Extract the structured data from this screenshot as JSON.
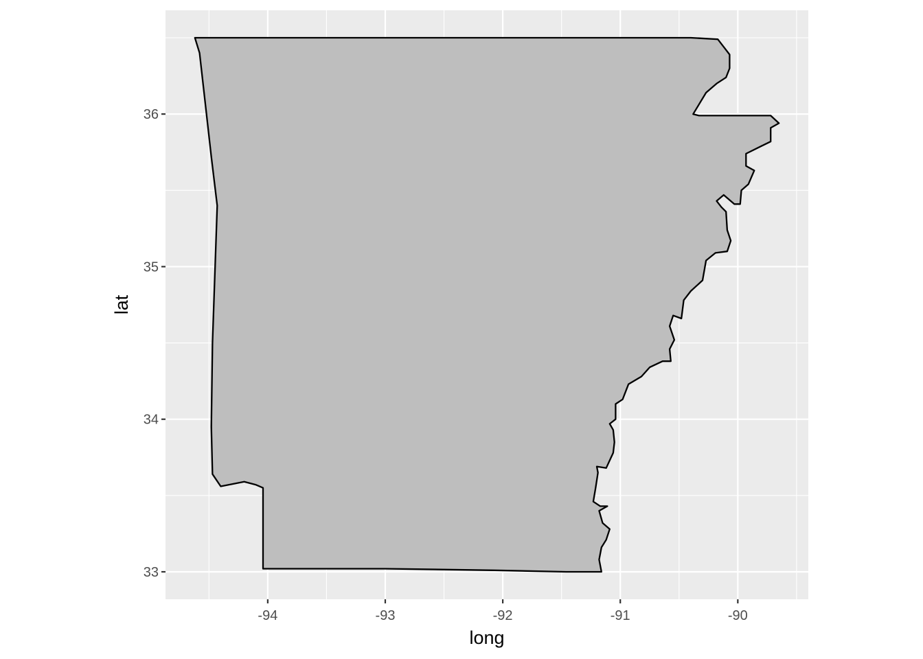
{
  "chart_data": {
    "type": "map",
    "region": "arkansas",
    "xlabel": "long",
    "ylabel": "lat",
    "x_ticks": [
      -94,
      -93,
      -92,
      -91,
      -90
    ],
    "x_tick_labels": [
      "-94",
      "-93",
      "-92",
      "-91",
      "-90"
    ],
    "y_ticks": [
      33,
      34,
      35,
      36
    ],
    "y_tick_labels": [
      "33",
      "34",
      "35",
      "36"
    ],
    "xlim": [
      -94.87,
      -89.4
    ],
    "ylim": [
      32.82,
      36.68
    ],
    "grid": true,
    "panel_color": "#ebebeb",
    "grid_color": "#ffffff",
    "fill_color": "#bebebe",
    "outline_color": "#000000",
    "polygon": [
      [
        -94.62,
        36.5
      ],
      [
        -94.08,
        36.5
      ],
      [
        -93.87,
        36.5
      ],
      [
        -93.3,
        36.5
      ],
      [
        -92.3,
        36.5
      ],
      [
        -91.4,
        36.5
      ],
      [
        -90.4,
        36.5
      ],
      [
        -90.17,
        36.49
      ],
      [
        -90.12,
        36.44
      ],
      [
        -90.07,
        36.39
      ],
      [
        -90.07,
        36.3
      ],
      [
        -90.1,
        36.24
      ],
      [
        -90.18,
        36.2
      ],
      [
        -90.27,
        36.14
      ],
      [
        -90.38,
        36.0
      ],
      [
        -90.33,
        35.99
      ],
      [
        -89.72,
        35.99
      ],
      [
        -89.65,
        35.94
      ],
      [
        -89.72,
        35.91
      ],
      [
        -89.72,
        35.82
      ],
      [
        -89.8,
        35.79
      ],
      [
        -89.93,
        35.74
      ],
      [
        -89.93,
        35.66
      ],
      [
        -89.86,
        35.63
      ],
      [
        -89.91,
        35.54
      ],
      [
        -89.97,
        35.5
      ],
      [
        -89.98,
        35.41
      ],
      [
        -90.03,
        35.41
      ],
      [
        -90.12,
        35.47
      ],
      [
        -90.18,
        35.43
      ],
      [
        -90.14,
        35.39
      ],
      [
        -90.1,
        35.36
      ],
      [
        -90.09,
        35.24
      ],
      [
        -90.06,
        35.17
      ],
      [
        -90.09,
        35.1
      ],
      [
        -90.19,
        35.09
      ],
      [
        -90.27,
        35.04
      ],
      [
        -90.3,
        34.91
      ],
      [
        -90.4,
        34.84
      ],
      [
        -90.46,
        34.78
      ],
      [
        -90.48,
        34.66
      ],
      [
        -90.55,
        34.68
      ],
      [
        -90.58,
        34.61
      ],
      [
        -90.54,
        34.52
      ],
      [
        -90.58,
        34.46
      ],
      [
        -90.57,
        34.38
      ],
      [
        -90.64,
        34.38
      ],
      [
        -90.75,
        34.34
      ],
      [
        -90.82,
        34.28
      ],
      [
        -90.93,
        34.23
      ],
      [
        -90.98,
        34.13
      ],
      [
        -91.04,
        34.1
      ],
      [
        -91.04,
        34.0
      ],
      [
        -91.09,
        33.97
      ],
      [
        -91.06,
        33.93
      ],
      [
        -91.05,
        33.85
      ],
      [
        -91.06,
        33.78
      ],
      [
        -91.12,
        33.68
      ],
      [
        -91.2,
        33.69
      ],
      [
        -91.19,
        33.65
      ],
      [
        -91.21,
        33.55
      ],
      [
        -91.23,
        33.46
      ],
      [
        -91.17,
        33.43
      ],
      [
        -91.11,
        33.43
      ],
      [
        -91.18,
        33.4
      ],
      [
        -91.15,
        33.32
      ],
      [
        -91.09,
        33.28
      ],
      [
        -91.12,
        33.21
      ],
      [
        -91.16,
        33.16
      ],
      [
        -91.18,
        33.08
      ],
      [
        -91.16,
        33.0
      ],
      [
        -91.46,
        33.0
      ],
      [
        -92.07,
        33.01
      ],
      [
        -93.0,
        33.02
      ],
      [
        -93.8,
        33.02
      ],
      [
        -94.04,
        33.02
      ],
      [
        -94.04,
        33.55
      ],
      [
        -94.1,
        33.57
      ],
      [
        -94.2,
        33.59
      ],
      [
        -94.4,
        33.56
      ],
      [
        -94.47,
        33.64
      ],
      [
        -94.48,
        33.95
      ],
      [
        -94.47,
        34.5
      ],
      [
        -94.43,
        35.4
      ],
      [
        -94.48,
        35.72
      ],
      [
        -94.58,
        36.4
      ],
      [
        -94.62,
        36.5
      ]
    ]
  }
}
